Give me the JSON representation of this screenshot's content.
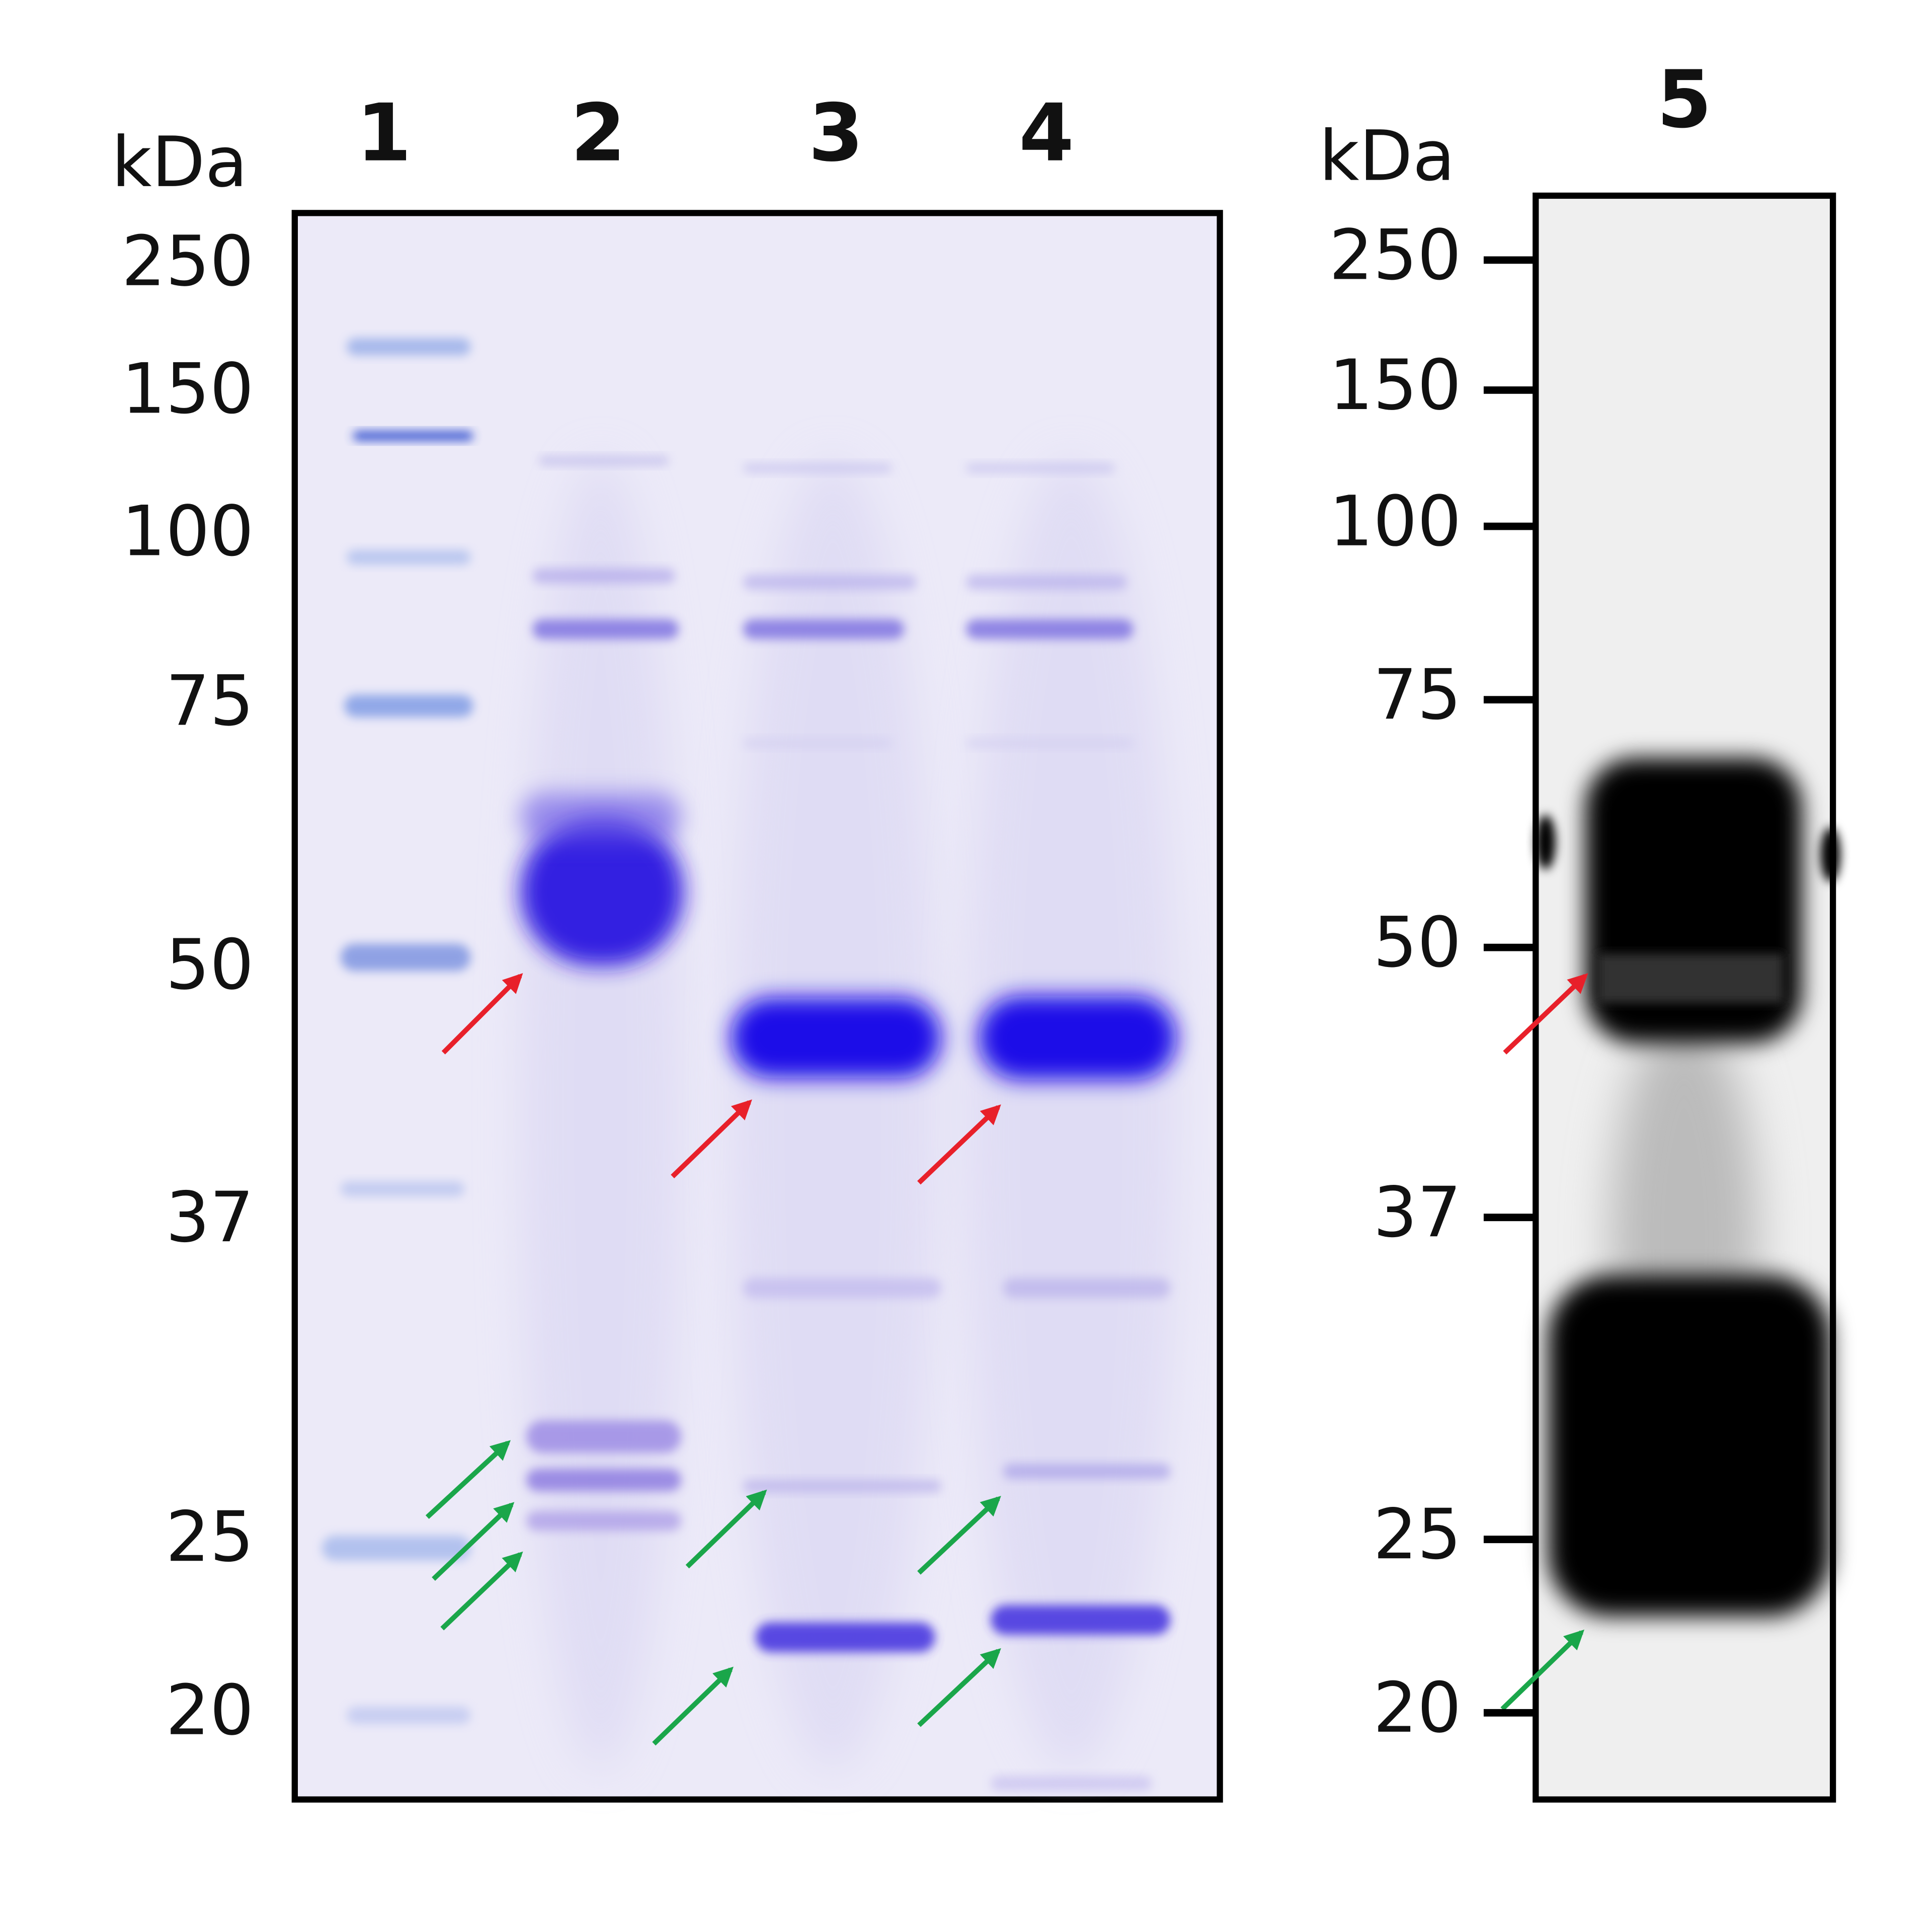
{
  "left_panel": {
    "unit_label": "kDa",
    "lanes": [
      "1",
      "2",
      "3",
      "4"
    ],
    "markers": [
      250,
      150,
      100,
      75,
      50,
      37,
      25,
      20
    ]
  },
  "right_panel": {
    "unit_label": "kDa",
    "lanes": [
      "5"
    ],
    "markers": [
      250,
      150,
      100,
      75,
      50,
      37,
      25,
      20
    ]
  }
}
